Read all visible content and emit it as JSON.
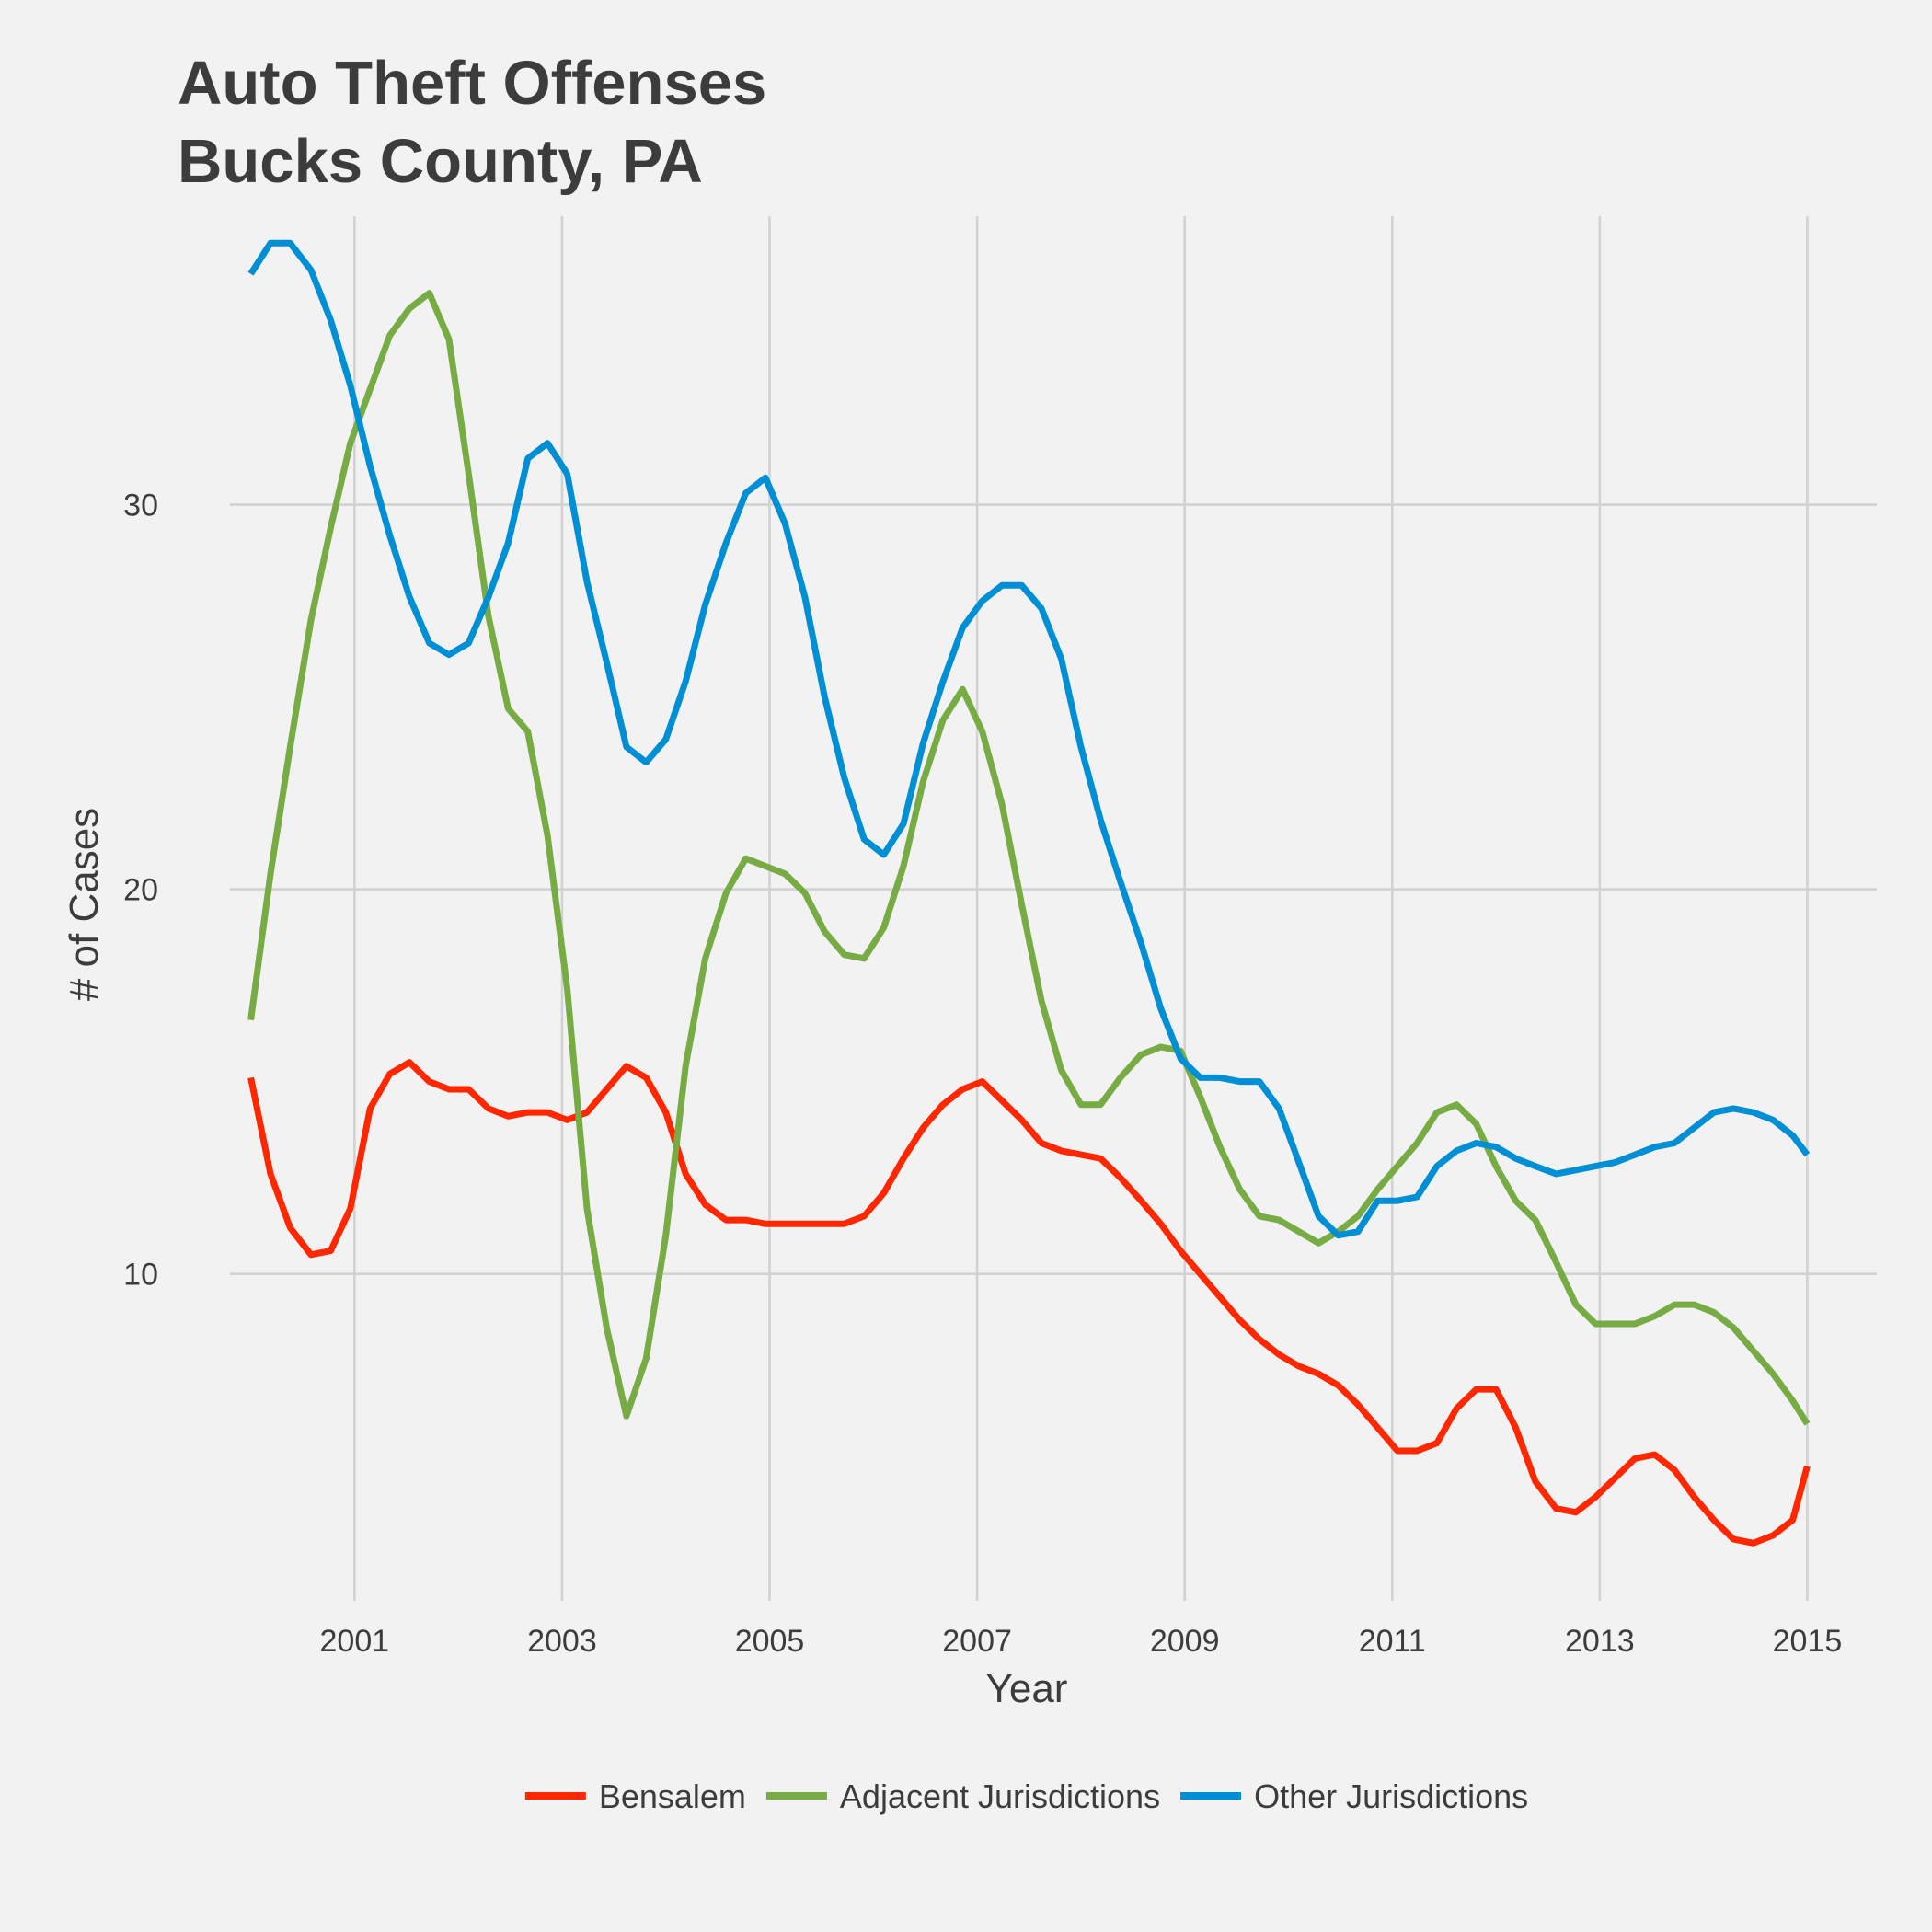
{
  "chart_data": {
    "type": "line",
    "title": "Auto Theft Offenses",
    "subtitle": "Bucks County, PA",
    "xlabel": "Year",
    "ylabel": "# of Cases",
    "x_ticks": [
      2001,
      2003,
      2005,
      2007,
      2009,
      2011,
      2013,
      2015
    ],
    "x_tick_labels": [
      "2001",
      "2003",
      "2005",
      "2007",
      "2009",
      "2011",
      "2013",
      "2015"
    ],
    "y_ticks": [
      10,
      20,
      30
    ],
    "y_tick_labels": [
      "10",
      "20",
      "30"
    ],
    "xlim": [
      1999.8,
      2015.67
    ],
    "ylim": [
      1.5,
      37.5
    ],
    "grid": true,
    "legend_position": "bottom",
    "x": [
      2000.0,
      2000.19,
      2000.38,
      2000.58,
      2000.77,
      2000.96,
      2001.15,
      2001.34,
      2001.53,
      2001.72,
      2001.91,
      2002.1,
      2002.29,
      2002.48,
      2002.67,
      2002.86,
      2003.05,
      2003.24,
      2003.43,
      2003.62,
      2003.81,
      2004.0,
      2004.19,
      2004.38,
      2004.58,
      2004.77,
      2004.96,
      2005.15,
      2005.34,
      2005.53,
      2005.72,
      2005.91,
      2006.1,
      2006.29,
      2006.48,
      2006.67,
      2006.86,
      2007.05,
      2007.24,
      2007.43,
      2007.62,
      2007.81,
      2008.0,
      2008.19,
      2008.38,
      2008.58,
      2008.77,
      2008.96,
      2009.15,
      2009.34,
      2009.53,
      2009.72,
      2009.91,
      2010.1,
      2010.29,
      2010.48,
      2010.67,
      2010.86,
      2011.05,
      2011.24,
      2011.43,
      2011.62,
      2011.81,
      2012.0,
      2012.19,
      2012.38,
      2012.58,
      2012.77,
      2012.96,
      2013.15,
      2013.34,
      2013.53,
      2013.72,
      2013.91,
      2014.1,
      2014.29,
      2014.48,
      2014.67,
      2014.86,
      2015.0
    ],
    "series": [
      {
        "name": "Bensalem",
        "color": "#ff2700",
        "values": [
          15.1,
          12.6,
          11.2,
          10.5,
          10.6,
          11.7,
          14.3,
          15.2,
          15.5,
          15.0,
          14.8,
          14.8,
          14.3,
          14.1,
          14.2,
          14.2,
          14.0,
          14.2,
          14.8,
          15.4,
          15.1,
          14.2,
          12.6,
          11.8,
          11.4,
          11.4,
          11.3,
          11.3,
          11.3,
          11.3,
          11.3,
          11.5,
          12.1,
          13.0,
          13.8,
          14.4,
          14.8,
          15.0,
          14.5,
          14.0,
          13.4,
          13.2,
          13.1,
          13.0,
          12.5,
          11.9,
          11.3,
          10.6,
          10.0,
          9.4,
          8.8,
          8.3,
          7.9,
          7.6,
          7.4,
          7.1,
          6.6,
          6.0,
          5.4,
          5.4,
          5.6,
          6.5,
          7.0,
          7.0,
          6.0,
          4.6,
          3.9,
          3.8,
          4.2,
          4.7,
          5.2,
          5.3,
          4.9,
          4.2,
          3.6,
          3.1,
          3.0,
          3.2,
          3.6,
          5.0
        ]
      },
      {
        "name": "Adjacent Jurisdictions",
        "color": "#77ab43",
        "values": [
          16.6,
          20.4,
          23.7,
          27.0,
          29.4,
          31.6,
          33.0,
          34.4,
          35.1,
          35.5,
          34.3,
          30.8,
          27.1,
          24.7,
          24.1,
          21.4,
          17.4,
          11.7,
          8.6,
          6.3,
          7.8,
          11.0,
          15.4,
          18.2,
          19.9,
          20.8,
          20.6,
          20.4,
          19.9,
          18.9,
          18.3,
          18.2,
          19.0,
          20.6,
          22.8,
          24.4,
          25.2,
          24.1,
          22.2,
          19.6,
          17.1,
          15.3,
          14.4,
          14.4,
          15.1,
          15.7,
          15.9,
          15.8,
          14.6,
          13.3,
          12.2,
          11.5,
          11.4,
          11.1,
          10.8,
          11.1,
          11.5,
          12.2,
          12.8,
          13.4,
          14.2,
          14.4,
          13.9,
          12.8,
          11.9,
          11.4,
          10.3,
          9.2,
          8.7,
          8.7,
          8.7,
          8.9,
          9.2,
          9.2,
          9.0,
          8.6,
          8.0,
          7.4,
          6.7,
          6.1
        ]
      },
      {
        "name": "Other Jurisdictions",
        "color": "#008fd5",
        "values": [
          36.0,
          36.8,
          36.8,
          36.1,
          34.8,
          33.1,
          31.0,
          29.2,
          27.6,
          26.4,
          26.1,
          26.4,
          27.6,
          29.0,
          31.2,
          31.6,
          30.8,
          28.0,
          25.9,
          23.7,
          23.3,
          23.9,
          25.4,
          27.4,
          29.0,
          30.3,
          30.7,
          29.5,
          27.6,
          25.0,
          22.9,
          21.3,
          20.9,
          21.7,
          23.8,
          25.4,
          26.8,
          27.5,
          27.9,
          27.9,
          27.3,
          26.0,
          23.7,
          21.8,
          20.2,
          18.6,
          16.9,
          15.6,
          15.1,
          15.1,
          15.0,
          15.0,
          14.3,
          12.9,
          11.5,
          11.0,
          11.1,
          11.9,
          11.9,
          12.0,
          12.8,
          13.2,
          13.4,
          13.3,
          13.0,
          12.8,
          12.6,
          12.7,
          12.8,
          12.9,
          13.1,
          13.3,
          13.4,
          13.8,
          14.2,
          14.3,
          14.2,
          14.0,
          13.6,
          13.1
        ]
      }
    ]
  }
}
